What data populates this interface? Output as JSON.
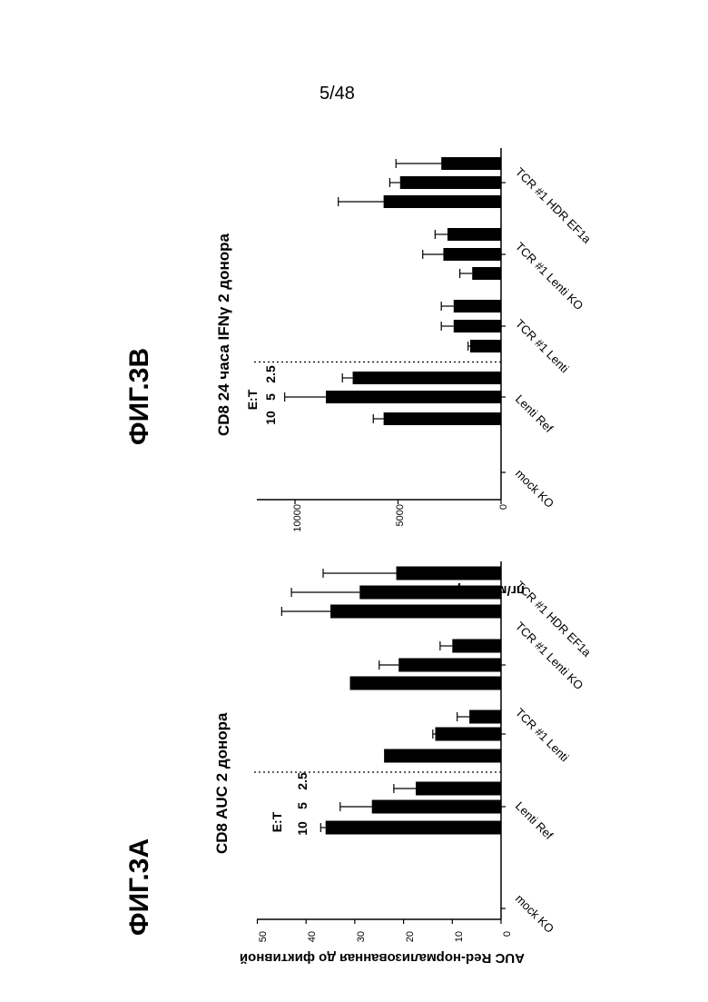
{
  "page_number": "5/48",
  "chart_data": [
    {
      "type": "bar",
      "figure_label": "ФИГ.3A",
      "title": "CD8 AUC 2 донора",
      "ylabel": "AUC Red-нормализованная до фиктивной",
      "ylim": [
        0,
        50
      ],
      "yticks": [
        "0",
        "10",
        "20",
        "30",
        "40",
        "50"
      ],
      "et_label": "E:T",
      "et_ratios": [
        "10",
        "5",
        "2.5"
      ],
      "groups": [
        "mock KO",
        "Lenti Ref",
        "TCR #1 Lenti",
        "TCR #1 Lenti KO",
        "TCR #1 HDR EF1a"
      ],
      "series": [
        {
          "values": [
            0,
            36,
            24,
            31,
            35
          ],
          "errors": [
            0,
            1,
            0,
            0,
            10
          ]
        },
        {
          "values": [
            0,
            26.5,
            13.5,
            21,
            29
          ],
          "errors": [
            0,
            6.5,
            0.5,
            4,
            14
          ]
        },
        {
          "values": [
            0,
            17.5,
            6.5,
            10,
            21.5
          ],
          "errors": [
            0,
            4.5,
            2.5,
            2.5,
            15
          ]
        }
      ]
    },
    {
      "type": "bar",
      "figure_label": "ФИГ.3B",
      "title": "CD8 24 часа IFNγ 2 донора",
      "ylabel": "пг/мл IFNγ",
      "ylim": [
        0,
        12000
      ],
      "yticks": [
        "0",
        "5000",
        "10000"
      ],
      "et_label": "E:T",
      "et_ratios": [
        "10",
        "5",
        "2.5"
      ],
      "groups": [
        "mock KO",
        "Lenti Ref",
        "TCR #1 Lenti",
        "TCR #1 Lenti KO",
        "TCR #1 HDR EF1a"
      ],
      "series": [
        {
          "values": [
            0,
            5700,
            1500,
            1400,
            5700
          ],
          "errors": [
            0,
            500,
            100,
            600,
            2200
          ]
        },
        {
          "values": [
            0,
            8500,
            2300,
            2800,
            4900
          ],
          "errors": [
            0,
            2000,
            600,
            1000,
            500
          ]
        },
        {
          "values": [
            0,
            7200,
            2300,
            2600,
            2900
          ],
          "errors": [
            0,
            500,
            600,
            600,
            2200
          ]
        }
      ]
    }
  ]
}
